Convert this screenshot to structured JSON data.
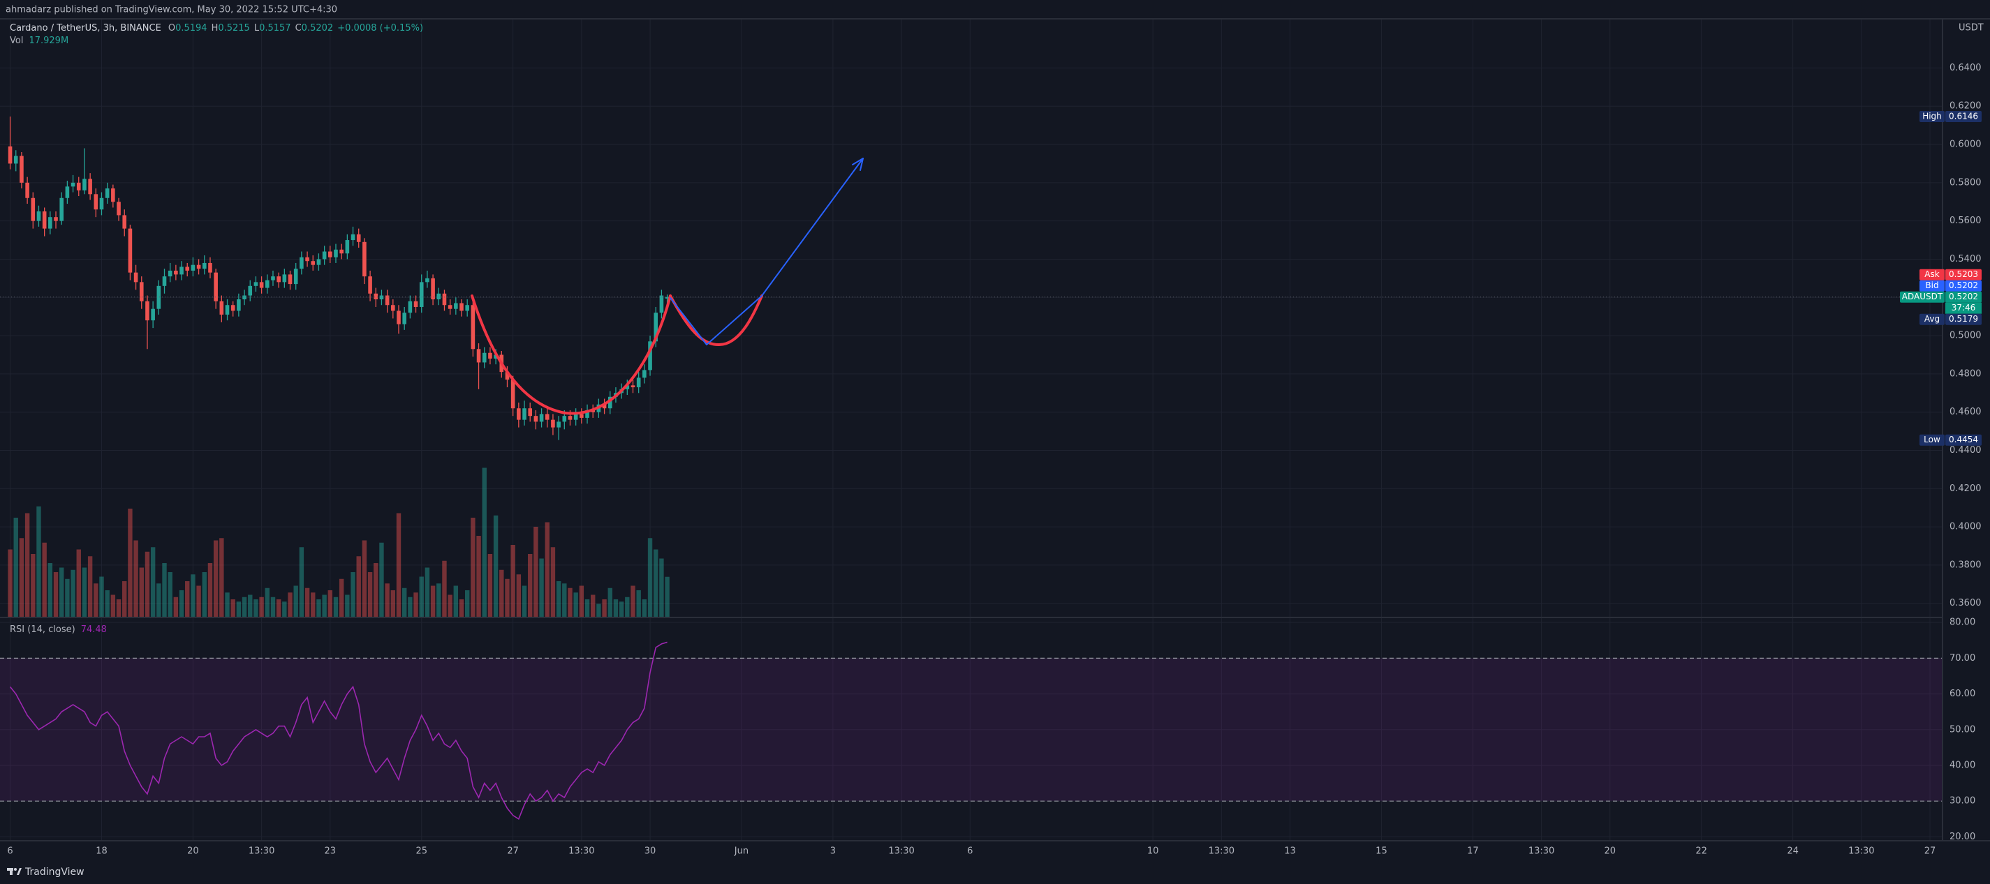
{
  "header": {
    "publisher": "ahmadarz published on TradingView.com, May 30, 2022 15:52 UTC+4:30",
    "footer": "TradingView"
  },
  "chart_data": {
    "type": "candlestick",
    "symbol": "Cardano / TetherUS, 3h, BINANCE",
    "legend": [
      {
        "key": "O",
        "value": "0.5194"
      },
      {
        "key": "H",
        "value": "0.5215"
      },
      {
        "key": "L",
        "value": "0.5157"
      },
      {
        "key": "C",
        "value": "0.5202"
      }
    ],
    "change": "+0.0008 (+0.15%)",
    "volume_title": "Vol",
    "volume_value": "17.929M",
    "currency": "USDT",
    "up_color": "#26a69a",
    "down_color": "#ef5350",
    "open": [
      0.599,
      0.59,
      0.594,
      0.58,
      0.572,
      0.56,
      0.565,
      0.556,
      0.562,
      0.56,
      0.572,
      0.578,
      0.58,
      0.576,
      0.582,
      0.574,
      0.566,
      0.572,
      0.577,
      0.57,
      0.563,
      0.556,
      0.533,
      0.528,
      0.518,
      0.508,
      0.514,
      0.526,
      0.531,
      0.534,
      0.532,
      0.536,
      0.534,
      0.537,
      0.535,
      0.538,
      0.533,
      0.518,
      0.511,
      0.516,
      0.513,
      0.519,
      0.521,
      0.526,
      0.528,
      0.525,
      0.529,
      0.531,
      0.528,
      0.532,
      0.527,
      0.535,
      0.541,
      0.539,
      0.537,
      0.54,
      0.544,
      0.541,
      0.545,
      0.543,
      0.55,
      0.553,
      0.549,
      0.531,
      0.522,
      0.519,
      0.521,
      0.516,
      0.513,
      0.506,
      0.512,
      0.518,
      0.515,
      0.528,
      0.53,
      0.519,
      0.522,
      0.516,
      0.514,
      0.517,
      0.513,
      0.516,
      0.493,
      0.486,
      0.491,
      0.488,
      0.49,
      0.481,
      0.477,
      0.462,
      0.456,
      0.462,
      0.458,
      0.455,
      0.459,
      0.456,
      0.452,
      0.455,
      0.458,
      0.456,
      0.459,
      0.457,
      0.461,
      0.46,
      0.464,
      0.462,
      0.468,
      0.47,
      0.472,
      0.474,
      0.473,
      0.478,
      0.482,
      0.497,
      0.512,
      0.5194
    ],
    "high": [
      0.6146,
      0.597,
      0.596,
      0.583,
      0.575,
      0.568,
      0.567,
      0.565,
      0.565,
      0.575,
      0.581,
      0.584,
      0.583,
      0.598,
      0.585,
      0.577,
      0.575,
      0.58,
      0.579,
      0.572,
      0.566,
      0.558,
      0.537,
      0.531,
      0.521,
      0.518,
      0.529,
      0.535,
      0.538,
      0.537,
      0.539,
      0.538,
      0.541,
      0.54,
      0.542,
      0.541,
      0.535,
      0.521,
      0.519,
      0.518,
      0.522,
      0.524,
      0.529,
      0.531,
      0.531,
      0.532,
      0.534,
      0.533,
      0.535,
      0.534,
      0.538,
      0.544,
      0.544,
      0.542,
      0.543,
      0.547,
      0.547,
      0.548,
      0.548,
      0.553,
      0.557,
      0.556,
      0.551,
      0.534,
      0.525,
      0.524,
      0.524,
      0.519,
      0.516,
      0.515,
      0.521,
      0.521,
      0.532,
      0.534,
      0.532,
      0.525,
      0.524,
      0.519,
      0.52,
      0.519,
      0.519,
      0.518,
      0.496,
      0.494,
      0.494,
      0.493,
      0.492,
      0.484,
      0.479,
      0.465,
      0.466,
      0.465,
      0.461,
      0.462,
      0.462,
      0.459,
      0.458,
      0.461,
      0.461,
      0.462,
      0.462,
      0.464,
      0.464,
      0.467,
      0.467,
      0.471,
      0.473,
      0.475,
      0.477,
      0.477,
      0.481,
      0.485,
      0.5,
      0.515,
      0.524,
      0.5215
    ],
    "low": [
      0.587,
      0.586,
      0.577,
      0.569,
      0.556,
      0.557,
      0.552,
      0.553,
      0.556,
      0.558,
      0.569,
      0.575,
      0.573,
      0.574,
      0.571,
      0.562,
      0.563,
      0.569,
      0.567,
      0.56,
      0.552,
      0.529,
      0.524,
      0.514,
      0.493,
      0.504,
      0.511,
      0.522,
      0.528,
      0.529,
      0.529,
      0.531,
      0.531,
      0.532,
      0.532,
      0.53,
      0.514,
      0.507,
      0.508,
      0.51,
      0.51,
      0.516,
      0.518,
      0.523,
      0.522,
      0.522,
      0.526,
      0.525,
      0.525,
      0.524,
      0.524,
      0.532,
      0.536,
      0.534,
      0.534,
      0.537,
      0.538,
      0.538,
      0.54,
      0.54,
      0.547,
      0.546,
      0.527,
      0.518,
      0.515,
      0.516,
      0.512,
      0.509,
      0.501,
      0.503,
      0.509,
      0.512,
      0.512,
      0.525,
      0.516,
      0.516,
      0.513,
      0.511,
      0.511,
      0.51,
      0.51,
      0.489,
      0.472,
      0.483,
      0.485,
      0.485,
      0.478,
      0.473,
      0.458,
      0.452,
      0.453,
      0.455,
      0.451,
      0.452,
      0.452,
      0.448,
      0.4454,
      0.451,
      0.453,
      0.453,
      0.454,
      0.454,
      0.457,
      0.457,
      0.459,
      0.459,
      0.465,
      0.467,
      0.469,
      0.47,
      0.47,
      0.475,
      0.479,
      0.494,
      0.509,
      0.5157
    ],
    "close": [
      0.59,
      0.594,
      0.58,
      0.572,
      0.56,
      0.565,
      0.556,
      0.562,
      0.56,
      0.572,
      0.578,
      0.58,
      0.576,
      0.582,
      0.574,
      0.566,
      0.572,
      0.577,
      0.57,
      0.563,
      0.556,
      0.533,
      0.528,
      0.518,
      0.508,
      0.514,
      0.526,
      0.531,
      0.534,
      0.532,
      0.536,
      0.534,
      0.537,
      0.535,
      0.538,
      0.533,
      0.518,
      0.511,
      0.516,
      0.513,
      0.519,
      0.521,
      0.526,
      0.528,
      0.525,
      0.529,
      0.531,
      0.528,
      0.532,
      0.527,
      0.535,
      0.541,
      0.539,
      0.537,
      0.54,
      0.544,
      0.541,
      0.545,
      0.543,
      0.55,
      0.553,
      0.549,
      0.531,
      0.522,
      0.519,
      0.521,
      0.516,
      0.513,
      0.506,
      0.512,
      0.518,
      0.515,
      0.528,
      0.53,
      0.519,
      0.522,
      0.516,
      0.514,
      0.517,
      0.513,
      0.516,
      0.493,
      0.486,
      0.491,
      0.488,
      0.49,
      0.481,
      0.477,
      0.462,
      0.456,
      0.462,
      0.458,
      0.455,
      0.459,
      0.456,
      0.452,
      0.455,
      0.458,
      0.456,
      0.459,
      0.457,
      0.461,
      0.46,
      0.464,
      0.462,
      0.468,
      0.47,
      0.472,
      0.474,
      0.473,
      0.478,
      0.482,
      0.497,
      0.512,
      0.521,
      0.5202
    ],
    "volume": [
      30,
      44,
      35,
      46,
      28,
      49,
      33,
      24,
      20,
      22,
      17,
      21,
      30,
      22,
      27,
      15,
      18,
      12,
      10,
      8,
      16,
      48,
      34,
      22,
      29,
      31,
      15,
      24,
      20,
      9,
      12,
      16,
      19,
      14,
      20,
      24,
      34,
      35,
      11,
      8,
      7,
      9,
      10,
      8,
      9,
      13,
      9,
      8,
      7,
      11,
      14,
      31,
      13,
      11,
      8,
      10,
      12,
      9,
      17,
      10,
      20,
      27,
      34,
      20,
      24,
      33,
      15,
      12,
      46,
      13,
      9,
      11,
      18,
      22,
      14,
      15,
      25,
      10,
      14,
      8,
      12,
      44,
      36,
      66,
      28,
      45,
      21,
      17,
      32,
      19,
      14,
      28,
      40,
      26,
      42,
      31,
      16,
      15,
      13,
      11,
      14,
      8,
      10,
      6,
      8,
      13,
      8,
      7,
      9,
      14,
      12,
      8,
      35,
      30,
      26,
      17.929
    ],
    "volume_ylim": [
      0,
      264
    ],
    "ylim": [
      0.3526,
      0.6657
    ],
    "yticks": [
      {
        "value": 0.36,
        "label": "0.3600"
      },
      {
        "value": 0.38,
        "label": "0.3800"
      },
      {
        "value": 0.4,
        "label": "0.4000"
      },
      {
        "value": 0.42,
        "label": "0.4200"
      },
      {
        "value": 0.44,
        "label": "0.4400"
      },
      {
        "value": 0.46,
        "label": "0.4600"
      },
      {
        "value": 0.48,
        "label": "0.4800"
      },
      {
        "value": 0.5,
        "label": "0.5000"
      },
      {
        "value": 0.52,
        "label": "0.5200"
      },
      {
        "value": 0.54,
        "label": "0.5400"
      },
      {
        "value": 0.56,
        "label": "0.5600"
      },
      {
        "value": 0.58,
        "label": "0.5800"
      },
      {
        "value": 0.6,
        "label": "0.6000"
      },
      {
        "value": 0.62,
        "label": "0.6200"
      },
      {
        "value": 0.64,
        "label": "0.6400"
      }
    ],
    "xlim": [
      -1.78,
      338.2
    ],
    "xticks": [
      {
        "value": 0,
        "label": "6"
      },
      {
        "value": 16,
        "label": "18"
      },
      {
        "value": 32,
        "label": "20"
      },
      {
        "value": 44,
        "label": "13:30"
      },
      {
        "value": 56,
        "label": "23"
      },
      {
        "value": 72,
        "label": "25"
      },
      {
        "value": 88,
        "label": "27"
      },
      {
        "value": 100,
        "label": "13:30"
      },
      {
        "value": 112,
        "label": "30"
      },
      {
        "value": 128,
        "label": "Jun"
      },
      {
        "value": 144,
        "label": "3"
      },
      {
        "value": 156,
        "label": "13:30"
      },
      {
        "value": 168,
        "label": "6"
      },
      {
        "value": 200,
        "label": "10"
      },
      {
        "value": 212,
        "label": "13:30"
      },
      {
        "value": 224,
        "label": "13"
      },
      {
        "value": 240,
        "label": "15"
      },
      {
        "value": 256,
        "label": "17"
      },
      {
        "value": 268,
        "label": "13:30"
      },
      {
        "value": 280,
        "label": "20"
      },
      {
        "value": 296,
        "label": "22"
      },
      {
        "value": 312,
        "label": "24"
      },
      {
        "value": 324,
        "label": "13:30"
      },
      {
        "value": 336,
        "label": "27"
      }
    ],
    "grid": true,
    "last_price": 0.5202,
    "price_tags": [
      {
        "name": "High",
        "value": 0.6146,
        "color": "#1c3066"
      },
      {
        "name": "Ask",
        "value": 0.5203,
        "color": "#f23645"
      },
      {
        "name": "Bid",
        "value": 0.5202,
        "color": "#2962ff"
      },
      {
        "name": "ADAUSDT",
        "value": 0.5202,
        "color": "#089981",
        "countdown": "37:46"
      },
      {
        "name": "Avg",
        "value": 0.5179,
        "color": "#1c3066"
      },
      {
        "name": "Low",
        "value": 0.4454,
        "color": "#1c3066"
      }
    ],
    "rsi": {
      "title": "RSI (14, close)",
      "value_label": "74.48",
      "color": "#9c27b0",
      "values": [
        62,
        60,
        57,
        54,
        52,
        50,
        51,
        52,
        53,
        55,
        56,
        57,
        56,
        55,
        52,
        51,
        54,
        55,
        53,
        51,
        44,
        40,
        37,
        34,
        32,
        37,
        35,
        42,
        46,
        47,
        48,
        47,
        46,
        48,
        48,
        49,
        42,
        40,
        41,
        44,
        46,
        48,
        49,
        50,
        49,
        48,
        49,
        51,
        51,
        48,
        52,
        57,
        59,
        52,
        55,
        58,
        55,
        53,
        57,
        60,
        62,
        57,
        46,
        41,
        38,
        40,
        42,
        39,
        36,
        42,
        47,
        50,
        54,
        51,
        47,
        49,
        46,
        45,
        47,
        44,
        42,
        34,
        31,
        35,
        33,
        35,
        31,
        28,
        26,
        25,
        29,
        32,
        30,
        31,
        33,
        30,
        32,
        31,
        34,
        36,
        38,
        39,
        38,
        41,
        40,
        43,
        45,
        47,
        50,
        52,
        53,
        56,
        66,
        73,
        74,
        74.48
      ],
      "ylim": [
        18.9,
        81.4
      ],
      "yticks": [
        {
          "value": 20,
          "label": "20.00"
        },
        {
          "value": 30,
          "label": "30.00"
        },
        {
          "value": 40,
          "label": "40.00"
        },
        {
          "value": 50,
          "label": "50.00"
        },
        {
          "value": 60,
          "label": "60.00"
        },
        {
          "value": 70,
          "label": "70.00"
        },
        {
          "value": 80,
          "label": "80.00"
        }
      ],
      "bands": [
        70,
        30
      ]
    }
  }
}
